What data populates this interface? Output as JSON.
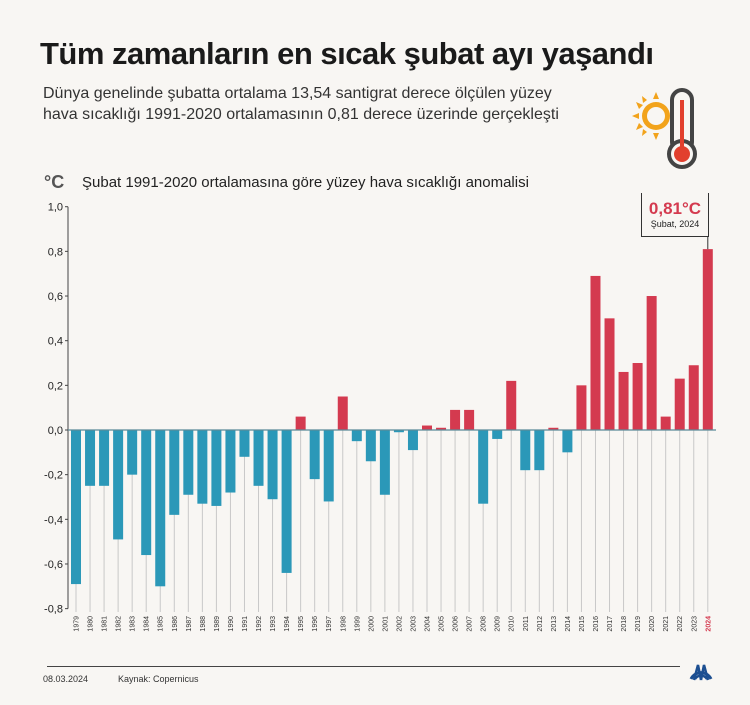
{
  "header": {
    "title": "Tüm zamanların en sıcak şubat ayı yaşandı",
    "subtitle": "Dünya genelinde şubatta ortalama 13,54 santigrat derece ölçülen yüzey hava sıcaklığı 1991-2020 ortalamasının 0,81 derece üzerinde gerçekleşti",
    "icon": "sun-thermometer-icon"
  },
  "chart_data": {
    "type": "bar",
    "title": "Şubat 1991-2020 ortalamasına göre yüzey hava sıcaklığı anomalisi",
    "ylabel": "°C",
    "xlabel": "",
    "ylim": [
      -0.8,
      1.0
    ],
    "yticks": [
      "1,0",
      "0,8",
      "0,6",
      "0,4",
      "0,2",
      "0,0",
      "-0,2",
      "-0,4",
      "-0,6",
      "-0,8"
    ],
    "categories": [
      "1979",
      "1980",
      "1981",
      "1982",
      "1983",
      "1984",
      "1985",
      "1986",
      "1987",
      "1988",
      "1989",
      "1990",
      "1991",
      "1992",
      "1993",
      "1994",
      "1995",
      "1996",
      "1997",
      "1998",
      "1999",
      "2000",
      "2001",
      "2002",
      "2003",
      "2004",
      "2005",
      "2006",
      "2007",
      "2008",
      "2009",
      "2010",
      "2011",
      "2012",
      "2013",
      "2014",
      "2015",
      "2016",
      "2017",
      "2018",
      "2019",
      "2020",
      "2021",
      "2022",
      "2023",
      "2024"
    ],
    "values": [
      -0.69,
      -0.25,
      -0.25,
      -0.49,
      -0.2,
      -0.56,
      -0.7,
      -0.38,
      -0.29,
      -0.33,
      -0.34,
      -0.28,
      -0.12,
      -0.25,
      -0.31,
      -0.64,
      0.06,
      -0.22,
      -0.32,
      0.15,
      -0.05,
      -0.14,
      -0.29,
      -0.01,
      -0.09,
      0.02,
      0.01,
      0.09,
      0.09,
      -0.33,
      -0.04,
      0.22,
      -0.18,
      -0.18,
      0.01,
      -0.1,
      0.2,
      0.69,
      0.5,
      0.26,
      0.3,
      0.6,
      0.06,
      0.23,
      0.29,
      0.81
    ],
    "colors": {
      "positive": "#d43a4f",
      "negative": "#2b98b8"
    },
    "grid": false,
    "annotation": {
      "value": "0,81°C",
      "label": "Şubat, 2024"
    }
  },
  "footer": {
    "date": "08.03.2024",
    "source": "Kaynak: Copernicus",
    "logo": "AA"
  }
}
